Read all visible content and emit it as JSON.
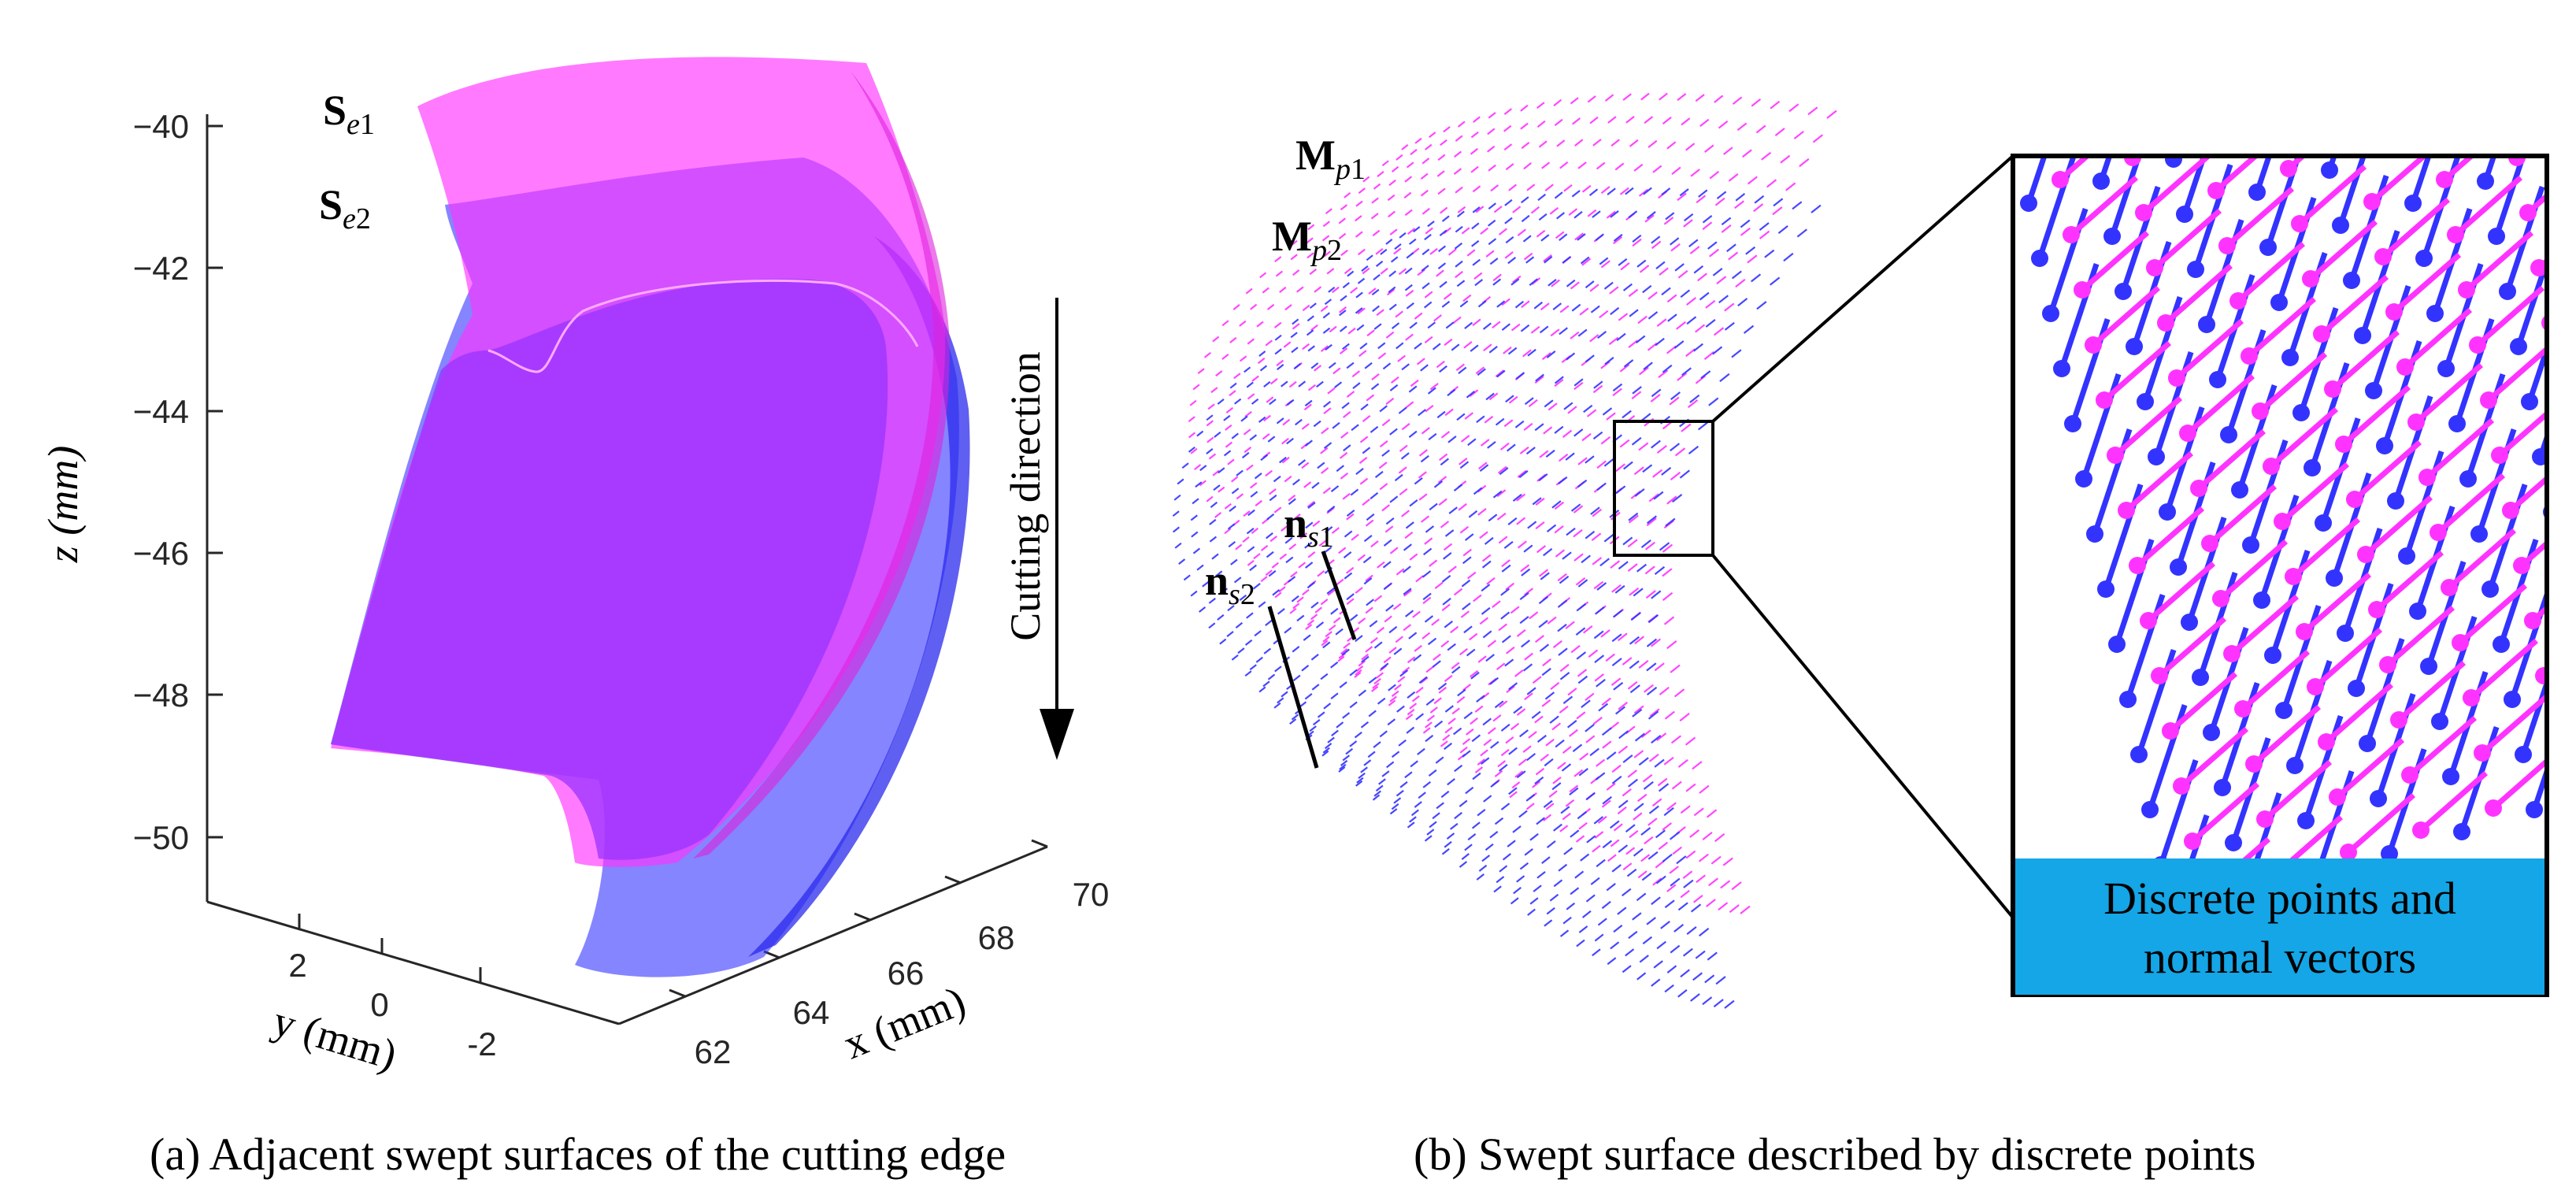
{
  "colors": {
    "magenta": "#ff33ff",
    "blue": "#3333ff",
    "purple": "#9933ff",
    "box_bg": "#14a6e6"
  },
  "panel_a": {
    "caption": "(a)  Adjacent swept surfaces of the cutting edge",
    "z_axis": {
      "title": "z (mm)",
      "ticks": [
        "−40",
        "−42",
        "−44",
        "−46",
        "−48",
        "−50"
      ]
    },
    "y_axis": {
      "title": "y (mm)",
      "ticks": [
        "2",
        "0",
        "-2"
      ]
    },
    "x_axis": {
      "title": "x (mm)",
      "ticks": [
        "62",
        "64",
        "66",
        "68",
        "70"
      ]
    },
    "label_se1": {
      "main": "S",
      "sub": "e",
      "num": "1"
    },
    "label_se2": {
      "main": "S",
      "sub": "e",
      "num": "2"
    },
    "cutting_direction": "Cutting direction"
  },
  "panel_b": {
    "caption": "(b) Swept surface described by discrete points",
    "label_mp1": {
      "main": "M",
      "sub": "p",
      "num": "1"
    },
    "label_mp2": {
      "main": "M",
      "sub": "p",
      "num": "2"
    },
    "label_ns1": {
      "main": "n",
      "sub": "s",
      "num": "1"
    },
    "label_ns2": {
      "main": "n",
      "sub": "s",
      "num": "2"
    },
    "inset_box": {
      "line1": "Discrete points and",
      "line2": "normal vectors"
    }
  }
}
